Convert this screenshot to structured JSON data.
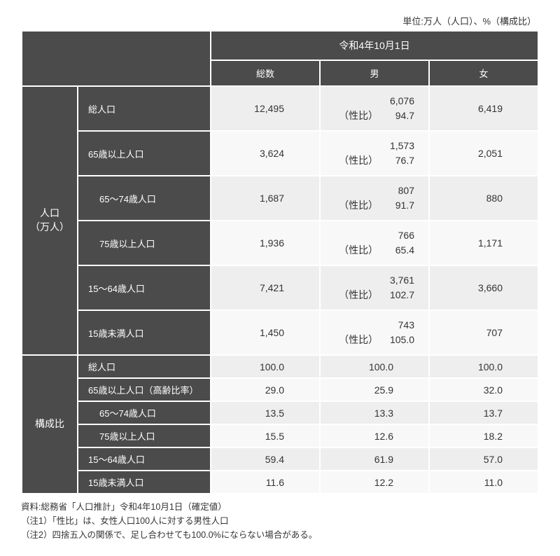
{
  "unit_label": "単位:万人（人口）、%（構成比）",
  "header": {
    "date": "令和4年10月1日",
    "cols": [
      "総数",
      "男",
      "女"
    ]
  },
  "sections": {
    "pop": {
      "label_line1": "人口",
      "label_line2": "（万人）",
      "ratio_prefix": "（性比）",
      "rows": [
        {
          "label": "総人口",
          "indent": false,
          "total": "12,495",
          "male": "6,076",
          "ratio": "94.7",
          "female": "6,419"
        },
        {
          "label": "65歳以上人口",
          "indent": false,
          "total": "3,624",
          "male": "1,573",
          "ratio": "76.7",
          "female": "2,051"
        },
        {
          "label": "65～74歳人口",
          "indent": true,
          "total": "1,687",
          "male": "807",
          "ratio": "91.7",
          "female": "880"
        },
        {
          "label": "75歳以上人口",
          "indent": true,
          "total": "1,936",
          "male": "766",
          "ratio": "65.4",
          "female": "1,171"
        },
        {
          "label": "15～64歳人口",
          "indent": false,
          "total": "7,421",
          "male": "3,761",
          "ratio": "102.7",
          "female": "3,660"
        },
        {
          "label": "15歳未満人口",
          "indent": false,
          "total": "1,450",
          "male": "743",
          "ratio": "105.0",
          "female": "707"
        }
      ]
    },
    "composition": {
      "label": "構成比",
      "rows": [
        {
          "label": "総人口",
          "indent": false,
          "total": "100.0",
          "male": "100.0",
          "female": "100.0"
        },
        {
          "label": "65歳以上人口（高齢比率）",
          "indent": false,
          "total": "29.0",
          "male": "25.9",
          "female": "32.0"
        },
        {
          "label": "65～74歳人口",
          "indent": true,
          "total": "13.5",
          "male": "13.3",
          "female": "13.7"
        },
        {
          "label": "75歳以上人口",
          "indent": true,
          "total": "15.5",
          "male": "12.6",
          "female": "18.2"
        },
        {
          "label": "15～64歳人口",
          "indent": false,
          "total": "59.4",
          "male": "61.9",
          "female": "57.0"
        },
        {
          "label": "15歳未満人口",
          "indent": false,
          "total": "11.6",
          "male": "12.2",
          "female": "11.0"
        }
      ]
    }
  },
  "notes": [
    "資料:総務省「人口推計」令和4年10月1日（確定値）",
    "（注1）「性比」は、女性人口100人に対する男性人口",
    "（注2）四捨五入の関係で、足し合わせても100.0%にならない場合がある。"
  ],
  "style": {
    "header_bg": "#4b4b4c",
    "header_fg": "#ffffff",
    "row_odd_bg": "#eeeeee",
    "row_even_bg": "#f8f8f8",
    "border_color": "#ffffff",
    "font_base_pt": 13
  }
}
